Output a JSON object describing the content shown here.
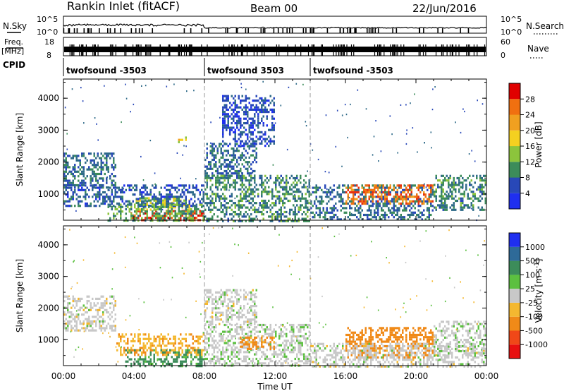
{
  "header": {
    "title": "Rankin Inlet (fitACF)",
    "beam": "Beam 00",
    "date": "22/Jun/2016"
  },
  "params": {
    "nsky_label": "N.Sky",
    "nsky_ticks": [
      "10^5",
      "10^0"
    ],
    "nsearch_label": "N.Search",
    "nsearch_ticks": [
      "10^5",
      "10^0"
    ],
    "freq_label": "Freq.",
    "freq_unit": "[MHz]",
    "freq_ticks": [
      "18",
      "8"
    ],
    "nave_label": "Nave",
    "nave_ticks": [
      "60",
      "0"
    ],
    "cpid_label": "CPID"
  },
  "cpid": [
    {
      "name": "twofsound -3503",
      "start_hr": 0,
      "end_hr": 8
    },
    {
      "name": "twofsound 3503",
      "start_hr": 8,
      "end_hr": 14
    },
    {
      "name": "twofsound -3503",
      "start_hr": 14,
      "end_hr": 24
    }
  ],
  "colors": {
    "power": [
      "#1f2ff0",
      "#2848b8",
      "#2e6a88",
      "#3c8c5a",
      "#8cc43c",
      "#f4d020",
      "#f0a020",
      "#f07010",
      "#e83010",
      "#e00000"
    ],
    "velocity": [
      "#e81010",
      "#f04818",
      "#f08a18",
      "#f4b830",
      "#c8c8c8",
      "#c8c8c8",
      "#5cc040",
      "#3c8c5a",
      "#2e6a98",
      "#1f2ff0"
    ]
  },
  "chart_data": [
    {
      "type": "heatmap",
      "name_id": "power",
      "ylabel": "Slant Range [km]",
      "xlabel": "",
      "xlim_hr": [
        0,
        24
      ],
      "ylim": [
        180,
        4600
      ],
      "yticks": [
        1000,
        2000,
        3000,
        4000
      ],
      "colorbar_label": "Power [dB]",
      "colorbar_range": [
        0,
        32
      ],
      "colorbar_ticks": [
        "4",
        "8",
        "12",
        "16",
        "20",
        "24",
        "28"
      ],
      "dashed_lines_hr": [
        8,
        14
      ],
      "regions": [
        {
          "t": [
            3.8,
            8.0
          ],
          "r": [
            180,
            500
          ],
          "v": 27
        },
        {
          "t": [
            4.0,
            7.2
          ],
          "r": [
            500,
            900
          ],
          "v": 15
        },
        {
          "t": [
            0.0,
            3.0
          ],
          "r": [
            1200,
            2300
          ],
          "v": 8
        },
        {
          "t": [
            0.0,
            8.0
          ],
          "r": [
            600,
            1300
          ],
          "v": 6
        },
        {
          "t": [
            2.5,
            8.0
          ],
          "r": [
            180,
            700
          ],
          "v": 12
        },
        {
          "t": [
            8.0,
            11.0
          ],
          "r": [
            1500,
            2600
          ],
          "v": 8
        },
        {
          "t": [
            8.0,
            14.0
          ],
          "r": [
            180,
            1600
          ],
          "v": 10
        },
        {
          "t": [
            9.0,
            12.0
          ],
          "r": [
            2500,
            4100
          ],
          "v": 5
        },
        {
          "t": [
            14.0,
            21.0
          ],
          "r": [
            180,
            1300
          ],
          "v": 8
        },
        {
          "t": [
            16.0,
            21.0
          ],
          "r": [
            700,
            1300
          ],
          "v": 24
        },
        {
          "t": [
            21.0,
            24.0
          ],
          "r": [
            500,
            1600
          ],
          "v": 10
        },
        {
          "t": [
            6.5,
            7.0
          ],
          "r": [
            2600,
            2800
          ],
          "v": 18
        }
      ]
    },
    {
      "type": "heatmap",
      "name_id": "velocity",
      "ylabel": "Slant Range [km]",
      "xlabel": "Time UT",
      "xlim_hr": [
        0,
        24
      ],
      "ylim": [
        180,
        4600
      ],
      "yticks": [
        1000,
        2000,
        3000,
        4000
      ],
      "xticks": [
        "00:00",
        "04:00",
        "08:00",
        "12:00",
        "16:00",
        "20:00",
        "00:00"
      ],
      "colorbar_label": "Velocity [m s^-1]",
      "colorbar_ticks": [
        "-1000",
        "-500",
        "-100",
        "-25",
        "25",
        "100",
        "500",
        "1000"
      ],
      "dashed_lines_hr": [
        8,
        14
      ],
      "regions": [
        {
          "t": [
            0.0,
            3.0
          ],
          "r": [
            1300,
            2400
          ],
          "v": 0
        },
        {
          "t": [
            3.5,
            8.0
          ],
          "r": [
            180,
            700
          ],
          "v": 150
        },
        {
          "t": [
            3.0,
            8.0
          ],
          "r": [
            500,
            1200
          ],
          "v": -80
        },
        {
          "t": [
            8.0,
            11.0
          ],
          "r": [
            1500,
            2600
          ],
          "v": 0
        },
        {
          "t": [
            8.0,
            14.0
          ],
          "r": [
            180,
            1500
          ],
          "v": 10
        },
        {
          "t": [
            10.0,
            12.0
          ],
          "r": [
            700,
            1100
          ],
          "v": -150
        },
        {
          "t": [
            16.0,
            21.0
          ],
          "r": [
            400,
            1400
          ],
          "v": -300
        },
        {
          "t": [
            14.0,
            24.0
          ],
          "r": [
            180,
            900
          ],
          "v": 0
        },
        {
          "t": [
            21.0,
            24.0
          ],
          "r": [
            500,
            1600
          ],
          "v": 10
        }
      ]
    }
  ]
}
